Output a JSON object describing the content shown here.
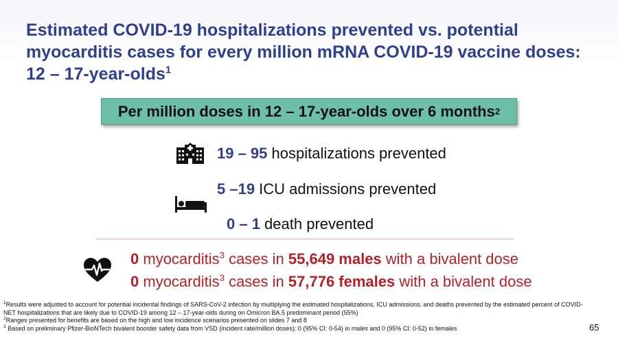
{
  "title": {
    "text": "Estimated COVID-19 hospitalizations prevented vs. potential myocarditis cases for every million mRNA COVID-19 vaccine doses: 12 – 17-year-olds",
    "sup": "1"
  },
  "banner": {
    "text": "Per million doses in 12 – 17-year-olds over 6 months",
    "sup": "2"
  },
  "benefits": {
    "hospitalizations": {
      "num": "19 – 95",
      "text": " hospitalizations prevented"
    },
    "icu": {
      "num": "5 –19",
      "text": " ICU admissions prevented"
    },
    "death": {
      "num": "0 – 1",
      "text": " death prevented"
    }
  },
  "icons": {
    "hospital": "hospital-icon",
    "bed": "bed-icon",
    "heart": "heartbeat-icon"
  },
  "myocarditis": {
    "males": {
      "count": "0",
      "label": " myocarditis",
      "sup": "3",
      "mid": " cases in ",
      "group": "55,649 males",
      "tail": " with a bivalent dose"
    },
    "females": {
      "count": "0",
      "label": " myocarditis",
      "sup": "3",
      "mid": " cases in ",
      "group": "57,776 females",
      "tail": " with a bivalent dose"
    }
  },
  "footnotes": [
    {
      "sup": "1",
      "text": "Results were adjusted to account for potential incidental findings of SARS-CoV-2 infection by multiplying the estimated hospitalizations, ICU admissions, and deaths prevented by the estimated percent of COVID-NET hospitalizations that are likely due to COVID-19 among 12 – 17-year-olds during on Omicron BA.5 predominant period (55%)"
    },
    {
      "sup": "2",
      "text": "Ranges presented for benefits are based on the high and low incidence scenarios presented on slides 7 and 8"
    },
    {
      "sup": "3",
      "text": " Based on preliminary Pfizer-BioNTech bivalent booster safety data from VSD (incident rate/million doses): 0 (95% CI: 0-54) in males and 0 (95% CI: 0-52) in females"
    }
  ],
  "page_number": "65",
  "colors": {
    "title": "#2e3f8f",
    "banner": "#6dbfa7",
    "myocarditis": "#b81e24",
    "divider": "#e7a7bf"
  }
}
